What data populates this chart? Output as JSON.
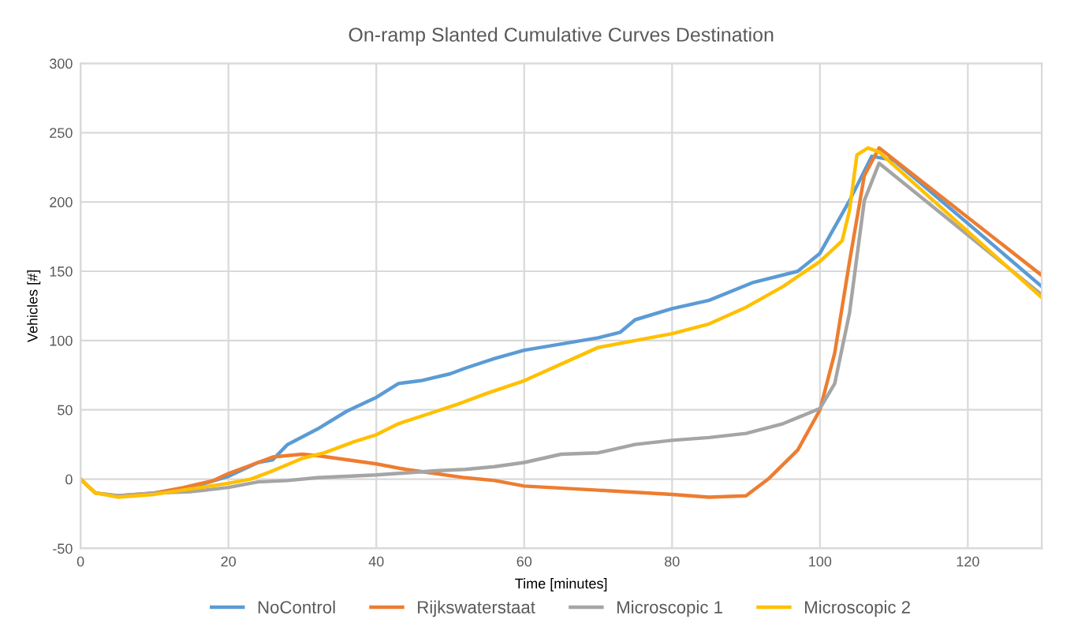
{
  "chart_data": {
    "type": "line",
    "title": "On-ramp Slanted Cumulative Curves Destination",
    "xlabel": "Time [minutes]",
    "ylabel": "Vehicles [#]",
    "xlim": [
      0,
      130
    ],
    "xticks": [
      0,
      20,
      40,
      60,
      80,
      100,
      120
    ],
    "ylim": [
      -50,
      300
    ],
    "yticks": [
      -50,
      0,
      50,
      100,
      150,
      200,
      250,
      300
    ],
    "grid": true,
    "legend": "bottom",
    "marker": "none",
    "line_style": "solid",
    "series": [
      {
        "name": "NoControl",
        "color": "#5b9bd5",
        "x": [
          10,
          15,
          20,
          24,
          26,
          28,
          32,
          36,
          40,
          43,
          46,
          50,
          52,
          56,
          60,
          70,
          73,
          75,
          80,
          85,
          91,
          97,
          100,
          104,
          107,
          110,
          130
        ],
        "values": [
          -10,
          -6,
          2,
          12,
          14,
          25,
          36,
          49,
          59,
          69,
          71,
          76,
          80,
          87,
          93,
          102,
          106,
          115,
          123,
          129,
          142,
          150,
          163,
          201,
          233,
          230,
          139
        ]
      },
      {
        "name": "Rijkswaterstaat",
        "color": "#ed7d31",
        "x": [
          0,
          2,
          5,
          10,
          14,
          18,
          20,
          23,
          26,
          30,
          32,
          36,
          40,
          44,
          48,
          52,
          56,
          60,
          70,
          80,
          85,
          90,
          93,
          97,
          100,
          102,
          104,
          106,
          108,
          130
        ],
        "values": [
          0,
          -10,
          -12,
          -10,
          -6,
          -1,
          4,
          10,
          16,
          18,
          17,
          14,
          11,
          7,
          4,
          1,
          -1,
          -5,
          -8,
          -11,
          -13,
          -12,
          0,
          21,
          50,
          91,
          157,
          219,
          239,
          147
        ]
      },
      {
        "name": "Microscopic 1",
        "color": "#a5a5a5",
        "x": [
          0,
          2,
          5,
          10,
          15,
          20,
          24,
          28,
          32,
          40,
          48,
          52,
          56,
          60,
          65,
          70,
          75,
          80,
          85,
          90,
          95,
          100,
          102,
          104,
          106,
          108,
          130
        ],
        "values": [
          0,
          -10,
          -12,
          -10,
          -9,
          -6,
          -2,
          -1,
          1,
          3,
          6,
          7,
          9,
          12,
          18,
          19,
          25,
          28,
          30,
          33,
          40,
          51,
          69,
          120,
          201,
          228,
          133
        ]
      },
      {
        "name": "Microscopic 2",
        "color": "#ffc000",
        "x": [
          0,
          2,
          5,
          10,
          15,
          20,
          23,
          26,
          30,
          33,
          37,
          40,
          43,
          47,
          51,
          55,
          60,
          70,
          75,
          80,
          85,
          90,
          95,
          100,
          103,
          104,
          105,
          106.5,
          108,
          130
        ],
        "values": [
          0,
          -10,
          -13,
          -11,
          -7,
          -3,
          0,
          6,
          15,
          19,
          27,
          32,
          40,
          47,
          54,
          62,
          71,
          95,
          100,
          105,
          112,
          124,
          139,
          157,
          172,
          194,
          234,
          239,
          236,
          131
        ]
      }
    ]
  }
}
